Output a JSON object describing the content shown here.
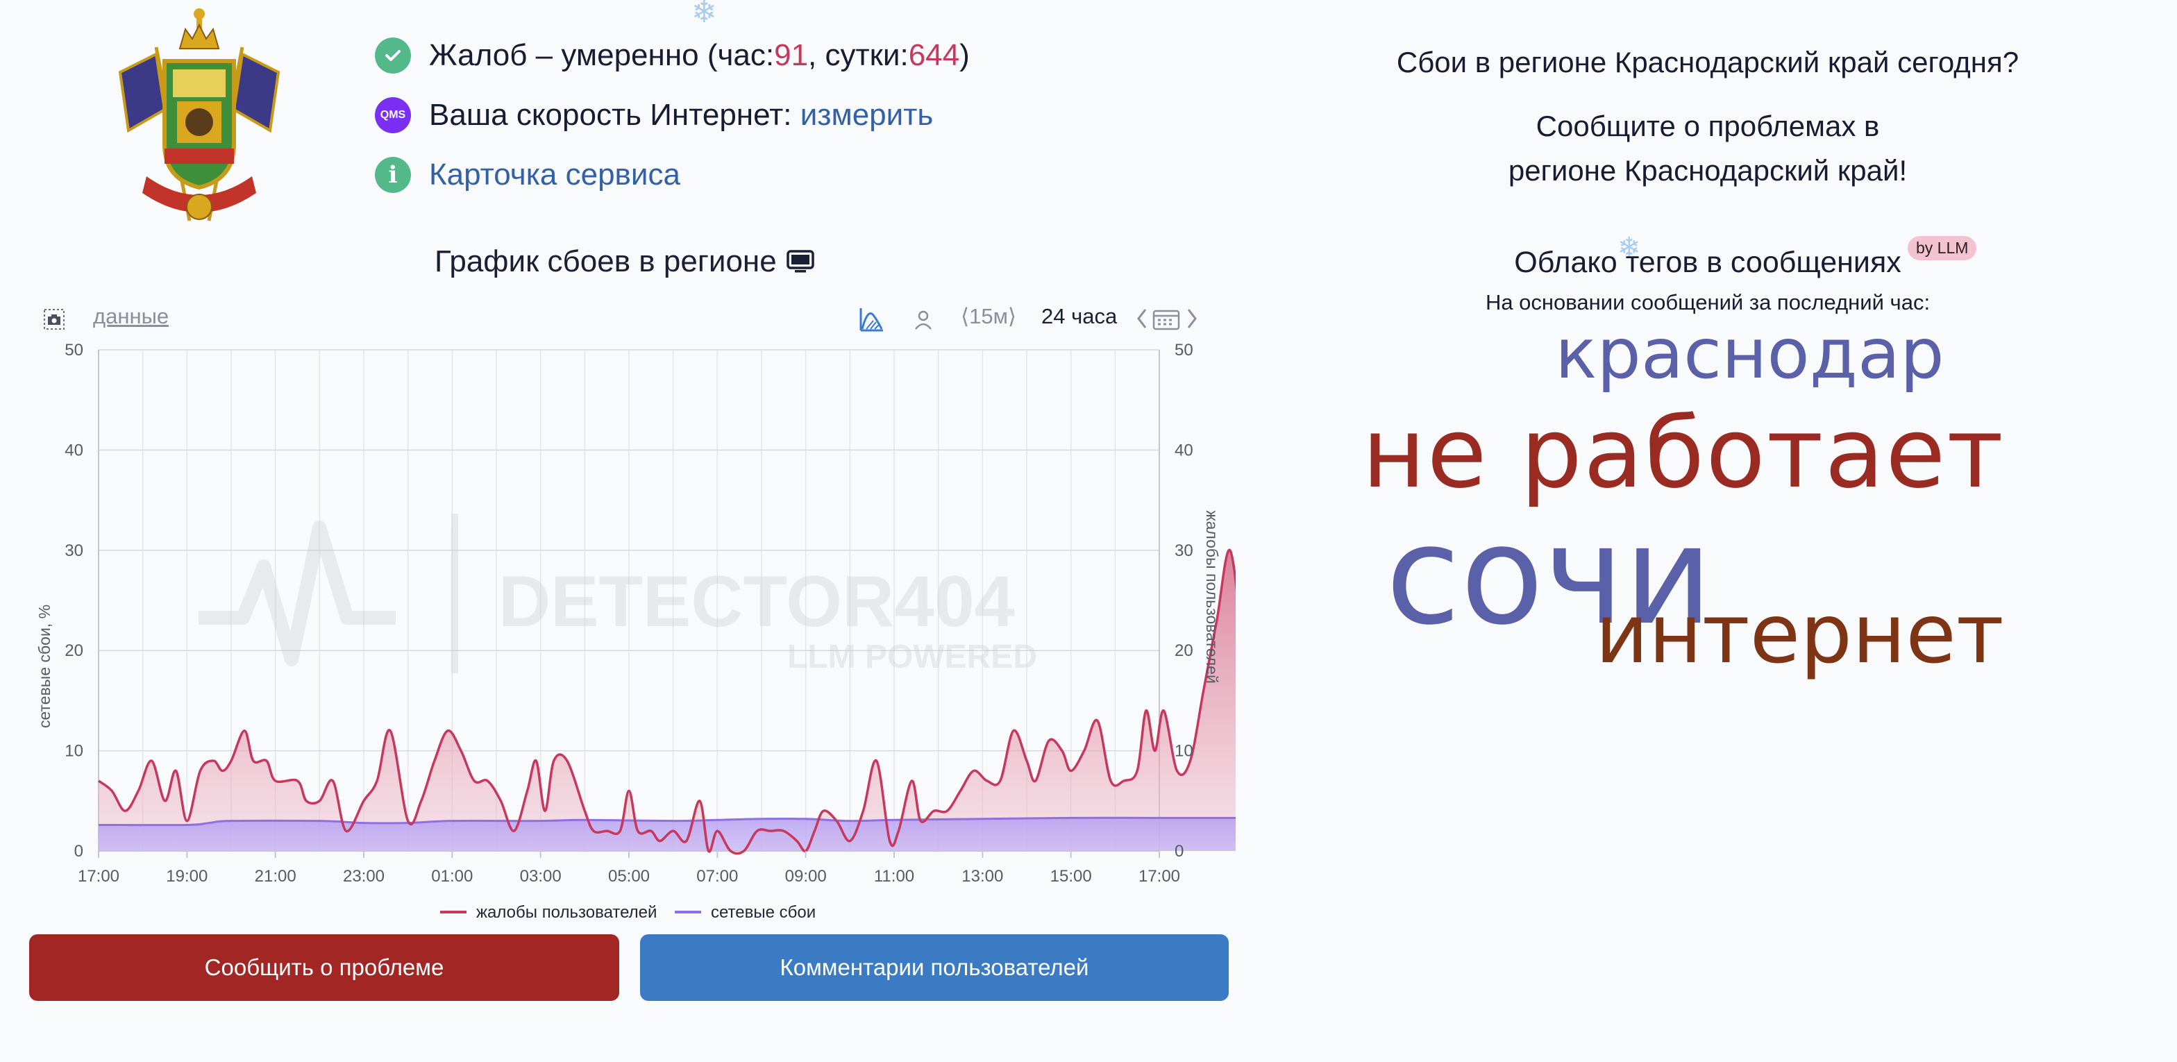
{
  "status": {
    "complaints_prefix": "Жалоб – умеренно (час: ",
    "complaints_hour": "91",
    "complaints_mid": ", сутки: ",
    "complaints_day": "644",
    "complaints_suffix": ")",
    "qms_badge": "QMS",
    "speed_label": "Ваша скорость Интернет: ",
    "speed_link": "измерить",
    "service_card_link": "Карточка сервиса"
  },
  "chart_header": {
    "title": "График сбоев в регионе",
    "data_link": "данные",
    "interval": "⟨15м⟩",
    "range": "24 часа",
    "watermark_main": "DETECTOR404",
    "watermark_sub": "LLM POWERED"
  },
  "chart_data": {
    "type": "area",
    "x_ticks": [
      "17:00",
      "19:00",
      "21:00",
      "23:00",
      "01:00",
      "03:00",
      "05:00",
      "07:00",
      "09:00",
      "11:00",
      "13:00",
      "15:00",
      "17:00"
    ],
    "ylim": [
      0,
      50
    ],
    "y_ticks": [
      0,
      10,
      20,
      30,
      40,
      50
    ],
    "ylabel_left": "сетевые сбои, %",
    "ylabel_right": "жалобы пользователей",
    "x_hours_range": [
      0,
      24
    ],
    "series": [
      {
        "name": "жалобы пользователей",
        "color": "#c7385d",
        "points": [
          [
            0,
            7
          ],
          [
            0.3,
            6
          ],
          [
            0.6,
            4
          ],
          [
            0.9,
            6
          ],
          [
            1.2,
            9
          ],
          [
            1.5,
            5
          ],
          [
            1.75,
            8
          ],
          [
            2.0,
            3
          ],
          [
            2.3,
            8
          ],
          [
            2.6,
            9
          ],
          [
            2.8,
            8
          ],
          [
            3.0,
            9
          ],
          [
            3.3,
            12
          ],
          [
            3.5,
            9
          ],
          [
            3.8,
            9
          ],
          [
            4.0,
            7
          ],
          [
            4.5,
            7
          ],
          [
            4.7,
            5
          ],
          [
            5.0,
            5
          ],
          [
            5.3,
            7
          ],
          [
            5.6,
            2
          ],
          [
            6.0,
            5
          ],
          [
            6.3,
            7
          ],
          [
            6.6,
            12
          ],
          [
            7.0,
            3
          ],
          [
            7.3,
            5
          ],
          [
            7.6,
            9
          ],
          [
            7.9,
            12
          ],
          [
            8.2,
            10
          ],
          [
            8.5,
            7
          ],
          [
            8.8,
            7
          ],
          [
            9.1,
            5
          ],
          [
            9.4,
            2
          ],
          [
            9.7,
            6
          ],
          [
            9.9,
            9
          ],
          [
            10.1,
            4
          ],
          [
            10.3,
            9
          ],
          [
            10.6,
            9
          ],
          [
            11.0,
            4
          ],
          [
            11.2,
            2
          ],
          [
            11.5,
            2
          ],
          [
            11.8,
            2
          ],
          [
            12.0,
            6
          ],
          [
            12.2,
            2
          ],
          [
            12.5,
            2
          ],
          [
            12.7,
            1
          ],
          [
            13.0,
            2
          ],
          [
            13.3,
            1
          ],
          [
            13.6,
            5
          ],
          [
            13.8,
            0
          ],
          [
            14.0,
            2
          ],
          [
            14.3,
            0
          ],
          [
            14.6,
            0
          ],
          [
            14.9,
            2
          ],
          [
            15.2,
            2
          ],
          [
            15.5,
            2
          ],
          [
            15.8,
            1
          ],
          [
            16.0,
            0
          ],
          [
            16.2,
            2
          ],
          [
            16.4,
            4
          ],
          [
            16.7,
            3
          ],
          [
            17.0,
            1
          ],
          [
            17.3,
            4
          ],
          [
            17.6,
            9
          ],
          [
            17.9,
            1
          ],
          [
            18.1,
            2
          ],
          [
            18.4,
            7
          ],
          [
            18.6,
            3
          ],
          [
            18.9,
            4
          ],
          [
            19.2,
            4
          ],
          [
            19.5,
            6
          ],
          [
            19.8,
            8
          ],
          [
            20.1,
            7
          ],
          [
            20.4,
            7
          ],
          [
            20.7,
            12
          ],
          [
            21.0,
            9
          ],
          [
            21.2,
            7
          ],
          [
            21.5,
            11
          ],
          [
            21.8,
            10
          ],
          [
            22.0,
            8
          ],
          [
            22.3,
            10
          ],
          [
            22.6,
            13
          ],
          [
            22.9,
            7
          ],
          [
            23.2,
            7
          ],
          [
            23.5,
            8
          ],
          [
            23.7,
            14
          ],
          [
            23.9,
            10
          ],
          [
            24.1,
            14
          ],
          [
            24.4,
            8
          ],
          [
            24.7,
            9
          ],
          [
            25.0,
            16
          ],
          [
            25.3,
            23
          ],
          [
            25.6,
            30
          ],
          [
            25.9,
            20
          ],
          [
            26.0,
            17
          ]
        ]
      },
      {
        "name": "сетевые сбои",
        "color": "#8f6fe2",
        "points": [
          [
            0,
            2.6
          ],
          [
            2,
            2.6
          ],
          [
            2.5,
            2.8
          ],
          [
            3,
            3.0
          ],
          [
            5,
            3.0
          ],
          [
            6,
            2.8
          ],
          [
            7,
            2.8
          ],
          [
            8,
            3.0
          ],
          [
            10,
            3.0
          ],
          [
            11,
            3.1
          ],
          [
            13,
            3.0
          ],
          [
            14,
            3.1
          ],
          [
            15,
            3.2
          ],
          [
            16,
            3.2
          ],
          [
            17,
            3.0
          ],
          [
            18,
            3.1
          ],
          [
            20,
            3.2
          ],
          [
            22,
            3.3
          ],
          [
            24,
            3.3
          ],
          [
            26,
            3.3
          ]
        ]
      }
    ],
    "legend": [
      "жалобы пользователей",
      "сетевые сбои"
    ]
  },
  "buttons": {
    "report": "Сообщить о проблеме",
    "comments": "Комментарии пользователей"
  },
  "right": {
    "outage_question": "Сбои в регионе Краснодарский край сегодня?",
    "report_cta_line1": "Сообщите о проблемах в",
    "report_cta_line2": "регионе Краснодарский край!",
    "cloud_title": "Облако тегов в сообщениях",
    "llm_badge": "by LLM",
    "cloud_subtitle": "На основании сообщений за последний час:",
    "tags": {
      "krasnodar": "краснодар",
      "ne_rabotaet": "не работает",
      "sochi": "сочи",
      "internet": "интернет"
    }
  },
  "colors": {
    "report_button": "#a22724",
    "comments_button": "#3b7bc4",
    "complaints_line": "#c7385d",
    "outages_line": "#8f6fe2",
    "check_icon": "#54b98a",
    "qms_icon": "#7b2ff2"
  },
  "icons": [
    "coat-of-arms",
    "check-icon",
    "qms-icon",
    "info-icon",
    "monitor-icon",
    "camera-icon",
    "area-chart-icon",
    "person-icon",
    "calendar-icon",
    "snowflake-icon"
  ]
}
